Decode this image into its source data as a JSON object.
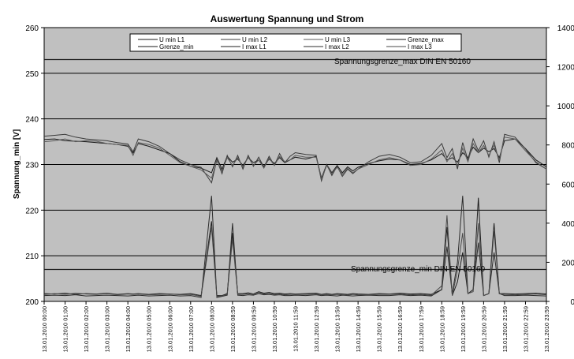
{
  "chart_data": {
    "type": "line",
    "title": "Auswertung Spannung und Strom",
    "ylabel": "Spannung_min [V]",
    "y2label": "",
    "ylim": [
      200,
      260
    ],
    "y2lim": [
      0,
      1400
    ],
    "yticks": [
      200,
      210,
      220,
      230,
      240,
      250,
      260
    ],
    "y2ticks": [
      0,
      200,
      400,
      600,
      800,
      1000,
      1200,
      1400
    ],
    "grid": true,
    "legend_position": "top",
    "xtick_labels": [
      "13.01.2010 00:00",
      "13.01.2010 01:00",
      "13.01.2010 02:00",
      "13.01.2010 03:00",
      "13.01.2010 04:00",
      "13.01.2010 05:00",
      "13.01.2010 06:00",
      "13.01.2010 07:00",
      "13.01.2010 08:00",
      "13.01.2010 08:59",
      "13.01.2010 09:59",
      "13.01.2010 10:59",
      "13.01.2010 11:59",
      "13.01.2010 12:59",
      "13.01.2010 13:59",
      "13.01.2010 14:59",
      "13.01.2010 15:59",
      "13.01.2010 16:59",
      "13.01.2010 17:59",
      "13.01.2010 18:59",
      "13.01.2010 19:59",
      "13.01.2010 20:59",
      "13.01.2010 21:59",
      "13.01.2010 22:59",
      "13.01.2010 23:59"
    ],
    "x_hours": [
      0,
      0.5,
      1,
      1.5,
      2,
      2.5,
      3,
      3.5,
      4,
      4.25,
      4.5,
      5,
      5.5,
      6,
      6.5,
      7,
      7.5,
      8,
      8.25,
      8.5,
      8.75,
      9,
      9.25,
      9.5,
      9.75,
      10,
      10.25,
      10.5,
      10.75,
      11,
      11.25,
      11.5,
      11.75,
      12,
      12.5,
      13,
      13.25,
      13.5,
      13.75,
      14,
      14.25,
      14.5,
      14.75,
      15,
      15.5,
      16,
      16.5,
      17,
      17.5,
      18,
      18.5,
      19,
      19.25,
      19.5,
      19.75,
      20,
      20.25,
      20.5,
      20.75,
      21,
      21.25,
      21.5,
      21.75,
      22,
      22.5,
      23,
      23.5,
      24
    ],
    "series": [
      {
        "name": "U min L1",
        "axis": "left",
        "color": "#1a1a1a",
        "width": 1,
        "values": [
          235.5,
          235.6,
          235.2,
          235.1,
          235.0,
          234.8,
          234.6,
          234.4,
          234.0,
          232.5,
          234.6,
          234.0,
          233.2,
          232.4,
          230.6,
          229.6,
          229.2,
          228.2,
          231.5,
          229.0,
          231.8,
          230.5,
          231.2,
          229.8,
          231.5,
          230.4,
          231.0,
          229.6,
          231.2,
          230.2,
          231.5,
          230.4,
          231.0,
          231.6,
          231.2,
          231.8,
          227.0,
          230.0,
          228.2,
          229.8,
          228.2,
          229.5,
          228.6,
          229.4,
          230.2,
          230.8,
          231.2,
          231.0,
          230.0,
          230.2,
          231.0,
          232.4,
          231.0,
          231.5,
          230.5,
          232.6,
          231.5,
          233.8,
          232.6,
          233.6,
          232.8,
          233.5,
          231.5,
          235.2,
          235.6,
          233.5,
          231.0,
          229.5
        ]
      },
      {
        "name": "U min L2",
        "axis": "left",
        "color": "#3a3a3a",
        "width": 1,
        "values": [
          236.2,
          236.4,
          236.6,
          236.0,
          235.6,
          235.4,
          235.2,
          234.8,
          234.5,
          232.8,
          235.6,
          235.0,
          234.0,
          232.4,
          231.0,
          230.0,
          229.4,
          226.0,
          231.0,
          228.0,
          232.0,
          229.5,
          232.0,
          229.0,
          232.0,
          229.6,
          231.6,
          229.4,
          231.8,
          229.8,
          232.4,
          230.4,
          231.8,
          232.6,
          232.2,
          232.0,
          226.4,
          230.0,
          227.6,
          229.6,
          227.4,
          229.0,
          228.0,
          229.0,
          230.6,
          231.8,
          232.2,
          231.6,
          230.4,
          230.6,
          232.0,
          234.6,
          231.5,
          233.5,
          229.0,
          234.8,
          231.0,
          235.6,
          233.0,
          235.2,
          231.6,
          235.0,
          230.4,
          236.6,
          236.0,
          233.4,
          230.4,
          229.0
        ]
      },
      {
        "name": "U min L3",
        "axis": "left",
        "color": "#5a5a5a",
        "width": 1,
        "values": [
          235.0,
          235.2,
          235.6,
          235.0,
          235.2,
          235.1,
          234.6,
          234.4,
          234.2,
          232.0,
          234.8,
          234.4,
          233.6,
          232.0,
          230.4,
          229.6,
          228.8,
          227.0,
          230.8,
          228.6,
          231.5,
          229.8,
          231.5,
          229.4,
          231.6,
          229.8,
          231.0,
          229.2,
          231.4,
          229.8,
          231.8,
          230.6,
          231.0,
          232.0,
          231.6,
          231.6,
          226.8,
          229.8,
          228.0,
          229.4,
          227.8,
          229.2,
          228.2,
          229.0,
          230.0,
          231.0,
          231.5,
          231.0,
          229.8,
          230.0,
          231.2,
          233.2,
          230.6,
          232.4,
          229.6,
          233.6,
          230.6,
          234.6,
          232.6,
          234.2,
          232.0,
          234.2,
          231.0,
          236.0,
          235.6,
          233.0,
          230.6,
          229.0
        ]
      },
      {
        "name": "Grenze_max",
        "axis": "left",
        "color": "#1a1a1a",
        "width": 1,
        "constant": 253,
        "label": "Spannungsgrenze_max DIN EN 50160"
      },
      {
        "name": "Grenze_min",
        "axis": "left",
        "color": "#1a1a1a",
        "width": 1,
        "constant": 207,
        "label": "Spannungsgrenze_min DIN EN 50160"
      },
      {
        "name": "I max L1",
        "axis": "right",
        "color": "#1f1f1f",
        "width": 1,
        "values": [
          40,
          38,
          42,
          36,
          40,
          38,
          42,
          36,
          40,
          38,
          40,
          36,
          40,
          38,
          36,
          40,
          30,
          410,
          30,
          30,
          40,
          350,
          40,
          40,
          44,
          38,
          50,
          42,
          46,
          40,
          42,
          38,
          40,
          38,
          40,
          42,
          36,
          40,
          36,
          40,
          38,
          36,
          40,
          38,
          36,
          40,
          38,
          42,
          38,
          40,
          36,
          60,
          380,
          30,
          100,
          250,
          40,
          60,
          530,
          30,
          40,
          400,
          40,
          40,
          38,
          40,
          42,
          38
        ]
      },
      {
        "name": "I max L2",
        "axis": "right",
        "color": "#2c2c2c",
        "width": 1,
        "values": [
          30,
          32,
          30,
          34,
          28,
          30,
          32,
          30,
          28,
          30,
          32,
          28,
          30,
          32,
          28,
          30,
          20,
          540,
          20,
          26,
          32,
          400,
          32,
          30,
          34,
          32,
          40,
          34,
          36,
          32,
          34,
          30,
          30,
          32,
          30,
          34,
          30,
          32,
          30,
          28,
          32,
          30,
          28,
          30,
          32,
          30,
          30,
          34,
          30,
          32,
          28,
          60,
          280,
          40,
          200,
          540,
          40,
          60,
          300,
          30,
          40,
          250,
          40,
          30,
          30,
          32,
          30,
          28
        ]
      },
      {
        "name": "I max L3",
        "axis": "right",
        "color": "#4a4a4a",
        "width": 1,
        "values": [
          35,
          40,
          36,
          42,
          38,
          36,
          40,
          34,
          38,
          36,
          38,
          34,
          36,
          38,
          34,
          36,
          26,
          380,
          26,
          28,
          36,
          320,
          36,
          36,
          40,
          36,
          46,
          38,
          42,
          36,
          38,
          34,
          36,
          36,
          36,
          38,
          34,
          36,
          34,
          36,
          34,
          32,
          36,
          34,
          34,
          36,
          36,
          38,
          34,
          36,
          32,
          80,
          440,
          30,
          160,
          350,
          40,
          50,
          400,
          30,
          40,
          360,
          40,
          36,
          34,
          36,
          38,
          34
        ]
      }
    ]
  }
}
